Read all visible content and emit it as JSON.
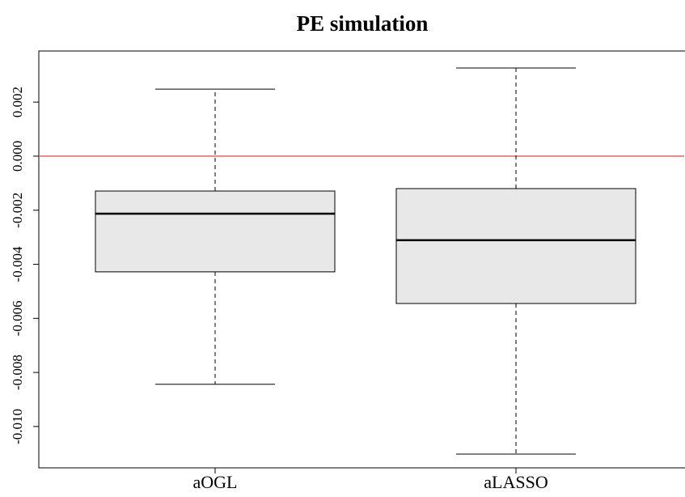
{
  "chart_data": {
    "type": "boxplot",
    "title": "PE simulation",
    "categories": [
      "aOGL",
      "aLASSO"
    ],
    "boxes": [
      {
        "min": -0.00844,
        "q1": -0.00428,
        "median": -0.00213,
        "q3": -0.00129,
        "max": 0.00248
      },
      {
        "min": -0.01102,
        "q1": -0.00545,
        "median": -0.00311,
        "q3": -0.0012,
        "max": 0.00326
      }
    ],
    "color": "#e8e8e8",
    "ylim": [
      -0.01153,
      0.00389
    ],
    "yticks": [
      {
        "value": -0.01,
        "label": "-0.010"
      },
      -0.008,
      -0.006,
      -0.004,
      -0.002,
      {
        "value": 0,
        "label": "0.000"
      },
      0.002
    ],
    "hline": 0,
    "hline_color": "#e06666"
  }
}
